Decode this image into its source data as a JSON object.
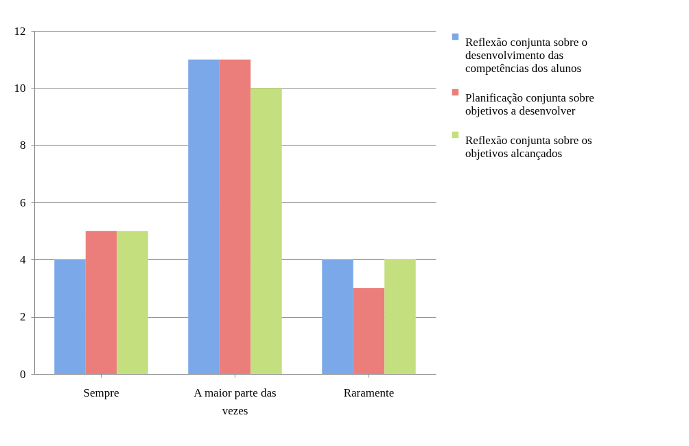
{
  "chart_data": {
    "type": "bar",
    "categories": [
      "Sempre",
      "A maior parte das vezes",
      "Raramente"
    ],
    "series": [
      {
        "name": "Reflexão conjunta sobre o desenvolvimento das competências dos alunos",
        "color": "#7aa8e8",
        "values": [
          4,
          11,
          4
        ]
      },
      {
        "name": "Planificação conjunta sobre objetivos a desenvolver",
        "color": "#eb7e7b",
        "values": [
          5,
          11,
          3
        ]
      },
      {
        "name": "Reflexão conjunta sobre os objetivos alcançados",
        "color": "#c4df7e",
        "values": [
          5,
          10,
          4
        ]
      }
    ],
    "ylim": [
      0,
      12
    ],
    "yticks": [
      0,
      2,
      4,
      6,
      8,
      10,
      12
    ],
    "grid": "y",
    "legend": "right"
  }
}
